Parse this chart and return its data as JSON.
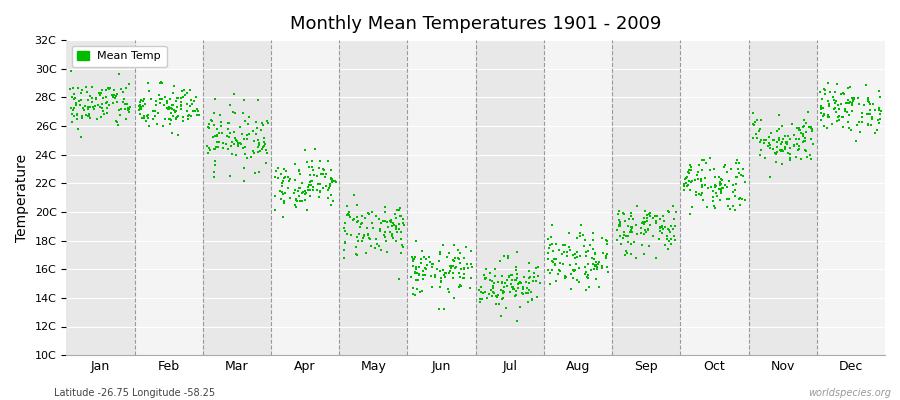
{
  "title": "Monthly Mean Temperatures 1901 - 2009",
  "ylabel": "Temperature",
  "xlabel_bottom": "Latitude -26.75 Longitude -58.25",
  "watermark": "worldspecies.org",
  "legend_label": "Mean Temp",
  "dot_color": "#00bb00",
  "bg_color_dark": "#e8e8e8",
  "bg_color_light": "#f4f4f4",
  "ylim": [
    10,
    32
  ],
  "yticks": [
    10,
    12,
    14,
    16,
    18,
    20,
    22,
    24,
    26,
    28,
    30,
    32
  ],
  "ytick_labels": [
    "10C",
    "12C",
    "14C",
    "16C",
    "18C",
    "20C",
    "22C",
    "24C",
    "26C",
    "28C",
    "30C",
    "32C"
  ],
  "month_names": [
    "Jan",
    "Feb",
    "Mar",
    "Apr",
    "May",
    "Jun",
    "Jul",
    "Aug",
    "Sep",
    "Oct",
    "Nov",
    "Dec"
  ],
  "monthly_means": [
    27.5,
    27.2,
    25.2,
    22.0,
    18.8,
    15.8,
    15.0,
    16.5,
    18.8,
    22.0,
    25.0,
    27.2
  ],
  "monthly_stds": [
    0.85,
    0.85,
    1.1,
    0.9,
    1.0,
    0.9,
    0.9,
    1.0,
    0.9,
    1.0,
    0.9,
    0.85
  ],
  "years": 109,
  "seed": 42
}
